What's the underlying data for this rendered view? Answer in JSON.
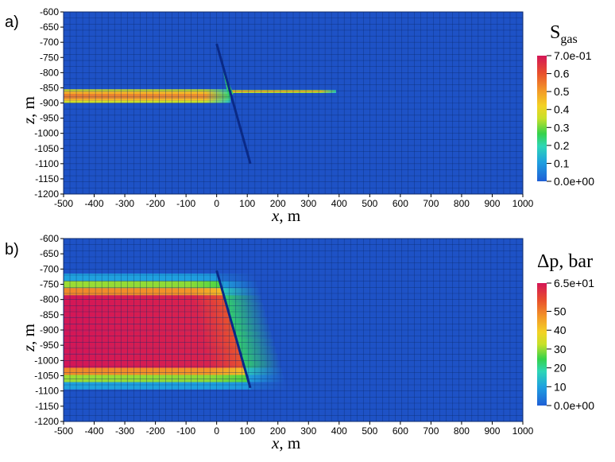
{
  "chart_data": [
    {
      "panel": "a)",
      "type": "heatmap",
      "xlabel": "x",
      "xunit": ", m",
      "ylabel": "z",
      "yunit": ", m",
      "xlim": [
        -500,
        1000
      ],
      "ylim": [
        -1200,
        -600
      ],
      "x_ticks": [
        "-500",
        "-400",
        "-300",
        "-200",
        "-100",
        "0",
        "100",
        "200",
        "300",
        "400",
        "500",
        "600",
        "700",
        "800",
        "900",
        "1000"
      ],
      "y_ticks": [
        "-600",
        "-650",
        "-700",
        "-750",
        "-800",
        "-850",
        "-900",
        "-950",
        "-1000",
        "-1050",
        "-1100",
        "-1150",
        "-1200"
      ],
      "colorbar": {
        "title": "S",
        "subscript": "gas",
        "min": 0,
        "max": 0.7,
        "ticks": [
          {
            "value": 0.7,
            "label": "7.0e-01"
          },
          {
            "value": 0.6,
            "label": "0.6"
          },
          {
            "value": 0.5,
            "label": "0.5"
          },
          {
            "value": 0.4,
            "label": "0.4"
          },
          {
            "value": 0.3,
            "label": "0.3"
          },
          {
            "value": 0.2,
            "label": "0.2"
          },
          {
            "value": 0.1,
            "label": "0.1"
          },
          {
            "value": 0.0,
            "label": "0.0e+00"
          }
        ]
      },
      "fault": {
        "x1": 0,
        "z1": -705,
        "x2": 110,
        "z2": -1100
      },
      "plumes": [
        {
          "x_from": -500,
          "x_to": 45,
          "z_top": -855,
          "z_bottom": -900,
          "value": 0.55
        },
        {
          "x_from": 50,
          "x_to": 390,
          "z_top": -857,
          "z_bottom": -866,
          "value": 0.5
        }
      ]
    },
    {
      "panel": "b)",
      "type": "heatmap",
      "xlabel": "x",
      "xunit": ", m",
      "ylabel": "z",
      "yunit": ", m",
      "xlim": [
        -500,
        1000
      ],
      "ylim": [
        -1200,
        -600
      ],
      "x_ticks": [
        "-500",
        "-400",
        "-300",
        "-200",
        "-100",
        "0",
        "100",
        "200",
        "300",
        "400",
        "500",
        "600",
        "700",
        "800",
        "900",
        "1000"
      ],
      "y_ticks": [
        "-600",
        "-650",
        "-700",
        "-750",
        "-800",
        "-850",
        "-900",
        "-950",
        "-1000",
        "-1050",
        "-1100",
        "-1150",
        "-1200"
      ],
      "colorbar": {
        "title": "Δp, bar",
        "subscript": "",
        "min": 0,
        "max": 65,
        "ticks": [
          {
            "value": 65,
            "label": "6.5e+01"
          },
          {
            "value": 50,
            "label": "50"
          },
          {
            "value": 40,
            "label": "40"
          },
          {
            "value": 30,
            "label": "30"
          },
          {
            "value": 20,
            "label": "20"
          },
          {
            "value": 10,
            "label": "10"
          },
          {
            "value": 0,
            "label": "0.0e+00"
          }
        ]
      },
      "fault": {
        "x1": 0,
        "z1": -705,
        "x2": 110,
        "z2": -1090
      },
      "pressure_zone": {
        "x_from": -500,
        "z_top": -715,
        "z_bottom": -1095,
        "peak_value": 65
      }
    }
  ]
}
